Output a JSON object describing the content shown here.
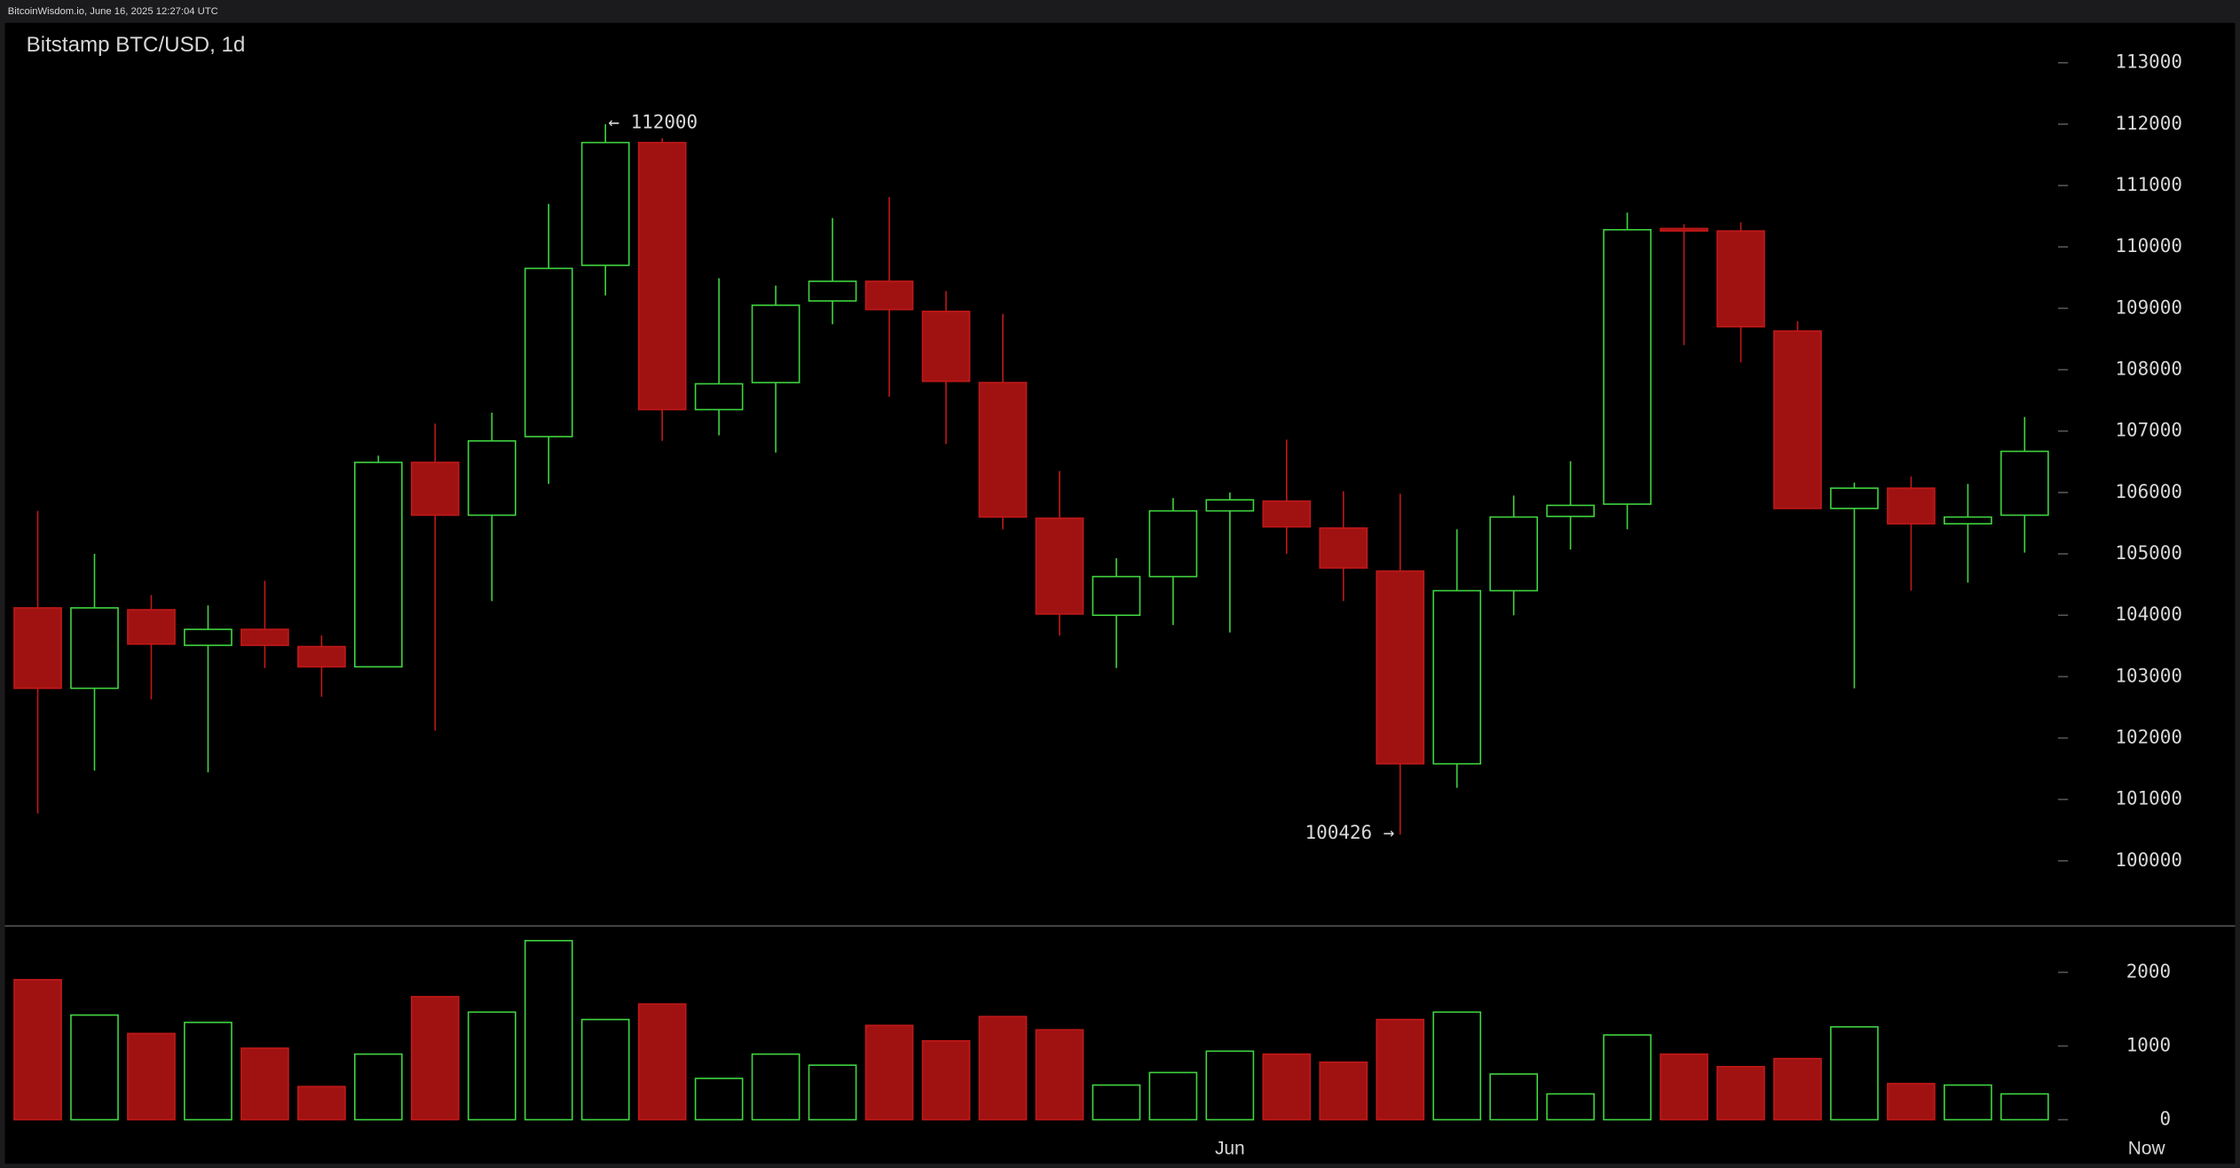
{
  "header": {
    "text": "BitcoinWisdom.io, June 16, 2025 12:27:04 UTC"
  },
  "chart_data": {
    "type": "candlestick",
    "title": "Bitstamp BTC/USD, 1d",
    "categories": [
      null,
      null,
      null,
      null,
      null,
      null,
      null,
      null,
      null,
      null,
      null,
      null,
      null,
      null,
      null,
      null,
      null,
      null,
      null,
      null,
      null,
      "Jun",
      null,
      null,
      null,
      null,
      null,
      null,
      null,
      null,
      null,
      null,
      null,
      null,
      null,
      null
    ],
    "x_end_label": "Now",
    "open": [
      104120,
      102810,
      104090,
      103510,
      103770,
      103490,
      103160,
      106490,
      105630,
      106910,
      109700,
      111700,
      107350,
      107790,
      109120,
      109440,
      108950,
      107790,
      105580,
      104000,
      104630,
      105700,
      105860,
      105420,
      104720,
      101580,
      104400,
      105610,
      105810,
      110300,
      110260,
      108630,
      105740,
      106070,
      105490,
      105630
    ],
    "high": [
      105700,
      105000,
      104330,
      104160,
      104560,
      103670,
      106600,
      107120,
      107300,
      110700,
      112000,
      111770,
      109490,
      109370,
      110470,
      110810,
      109280,
      108910,
      106350,
      104930,
      105910,
      106000,
      106860,
      106020,
      105980,
      105400,
      105950,
      106510,
      110560,
      110370,
      110400,
      108790,
      106160,
      106260,
      106140,
      107230
    ],
    "low": [
      100770,
      101470,
      102630,
      101440,
      103140,
      102670,
      103160,
      102120,
      104230,
      106140,
      109210,
      106840,
      106930,
      106650,
      108740,
      107560,
      106790,
      105400,
      103670,
      103140,
      103840,
      103720,
      105000,
      104230,
      100426,
      101190,
      104000,
      105070,
      105400,
      108400,
      108120,
      105740,
      102810,
      104400,
      104530,
      105020
    ],
    "close": [
      102810,
      104120,
      103530,
      103770,
      103510,
      103160,
      106490,
      105630,
      106840,
      109650,
      111700,
      107350,
      107770,
      109050,
      109440,
      108980,
      107810,
      105600,
      104020,
      104630,
      105700,
      105880,
      105440,
      104770,
      101580,
      104400,
      105600,
      105790,
      110280,
      110260,
      108700,
      105740,
      106070,
      105490,
      105600,
      106670
    ],
    "volume": [
      1900,
      1420,
      1170,
      1320,
      970,
      450,
      890,
      1670,
      1460,
      2430,
      1360,
      1570,
      560,
      890,
      740,
      1280,
      1070,
      1400,
      1220,
      470,
      640,
      930,
      890,
      780,
      1360,
      1460,
      620,
      350,
      1150,
      890,
      720,
      830,
      1260,
      490,
      470,
      350
    ],
    "up_color": "#3fd33f",
    "down_color": "#a01212",
    "ylim": [
      98950,
      113650
    ],
    "yticks": [
      100000,
      101000,
      102000,
      103000,
      104000,
      105000,
      106000,
      107000,
      108000,
      109000,
      110000,
      111000,
      112000,
      113000
    ],
    "volume_ylim": [
      -210,
      2600
    ],
    "volume_yticks": [
      0,
      1000,
      2000
    ],
    "annotations": [
      "← 112000",
      "100426 →"
    ]
  }
}
